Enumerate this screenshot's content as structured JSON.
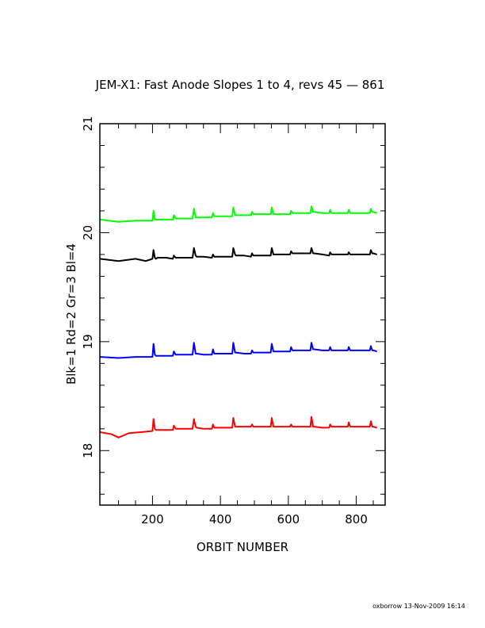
{
  "chart_data": {
    "type": "line",
    "title": "JEM-X1: Fast Anode Slopes 1 to 4, revs 45 — 861",
    "xlabel": "ORBIT NUMBER",
    "ylabel": "Blk=1 Rd=2 Gr=3 Bl=4",
    "xlim": [
      45,
      885
    ],
    "ylim": [
      17.5,
      21
    ],
    "x_ticks": [
      200,
      400,
      600,
      800
    ],
    "x_tick_labels": [
      "200",
      "400",
      "600",
      "800"
    ],
    "y_ticks": [
      18,
      19,
      20,
      21
    ],
    "y_tick_labels": [
      "18",
      "19",
      "20",
      "21"
    ],
    "grid": false,
    "footer": "oxborrow 13-Nov-2009 16:14",
    "series": [
      {
        "color": "#000000",
        "x": [
          45,
          100,
          150,
          180,
          200,
          203,
          207,
          210,
          215,
          240,
          260,
          263,
          268,
          290,
          318,
          322,
          327,
          330,
          350,
          375,
          378,
          382,
          385,
          410,
          435,
          438,
          443,
          446,
          470,
          490,
          493,
          497,
          500,
          525,
          548,
          551,
          556,
          560,
          580,
          605,
          608,
          612,
          615,
          640,
          665,
          668,
          673,
          676,
          700,
          720,
          723,
          727,
          730,
          755,
          775,
          778,
          782,
          785,
          810,
          840,
          843,
          847,
          850,
          861
        ],
        "y": [
          19.76,
          19.74,
          19.76,
          19.74,
          19.76,
          19.84,
          19.77,
          19.76,
          19.77,
          19.77,
          19.76,
          19.79,
          19.77,
          19.77,
          19.77,
          19.86,
          19.79,
          19.78,
          19.78,
          19.77,
          19.8,
          19.78,
          19.78,
          19.78,
          19.78,
          19.86,
          19.8,
          19.79,
          19.79,
          19.78,
          19.81,
          19.79,
          19.79,
          19.79,
          19.79,
          19.86,
          19.8,
          19.8,
          19.8,
          19.8,
          19.83,
          19.81,
          19.81,
          19.81,
          19.81,
          19.86,
          19.81,
          19.81,
          19.8,
          19.79,
          19.82,
          19.8,
          19.8,
          19.8,
          19.8,
          19.82,
          19.8,
          19.8,
          19.8,
          19.8,
          19.84,
          19.81,
          19.81,
          19.8
        ]
      },
      {
        "color": "#ff0000",
        "x": [
          45,
          80,
          100,
          130,
          170,
          200,
          203,
          207,
          210,
          240,
          260,
          263,
          268,
          290,
          318,
          322,
          327,
          330,
          350,
          375,
          378,
          382,
          385,
          410,
          435,
          438,
          443,
          446,
          470,
          490,
          493,
          497,
          500,
          525,
          548,
          551,
          556,
          560,
          580,
          605,
          608,
          612,
          615,
          640,
          665,
          668,
          673,
          676,
          700,
          720,
          723,
          727,
          730,
          755,
          775,
          778,
          782,
          785,
          810,
          840,
          843,
          847,
          850,
          861
        ],
        "y": [
          18.17,
          18.15,
          18.12,
          18.16,
          18.17,
          18.18,
          18.29,
          18.2,
          18.19,
          18.19,
          18.19,
          18.23,
          18.2,
          18.2,
          18.2,
          18.29,
          18.22,
          18.21,
          18.2,
          18.2,
          18.24,
          18.21,
          18.21,
          18.21,
          18.21,
          18.3,
          18.22,
          18.22,
          18.22,
          18.22,
          18.24,
          18.22,
          18.22,
          18.22,
          18.22,
          18.3,
          18.22,
          18.22,
          18.22,
          18.22,
          18.24,
          18.22,
          18.22,
          18.22,
          18.22,
          18.31,
          18.22,
          18.22,
          18.21,
          18.21,
          18.24,
          18.22,
          18.22,
          18.22,
          18.22,
          18.26,
          18.22,
          18.22,
          18.22,
          18.22,
          18.27,
          18.22,
          18.22,
          18.21
        ]
      },
      {
        "color": "#00ff00",
        "x": [
          45,
          100,
          150,
          180,
          200,
          203,
          207,
          210,
          240,
          260,
          263,
          268,
          290,
          318,
          322,
          327,
          330,
          350,
          375,
          378,
          382,
          385,
          410,
          435,
          438,
          443,
          446,
          470,
          490,
          493,
          497,
          500,
          525,
          548,
          551,
          556,
          560,
          580,
          605,
          608,
          612,
          615,
          640,
          665,
          668,
          673,
          676,
          700,
          720,
          723,
          727,
          730,
          755,
          775,
          778,
          782,
          785,
          810,
          840,
          843,
          847,
          850,
          861
        ],
        "y": [
          20.12,
          20.1,
          20.11,
          20.11,
          20.11,
          20.2,
          20.12,
          20.12,
          20.12,
          20.12,
          20.16,
          20.13,
          20.13,
          20.13,
          20.22,
          20.14,
          20.14,
          20.14,
          20.14,
          20.18,
          20.15,
          20.15,
          20.15,
          20.15,
          20.23,
          20.16,
          20.16,
          20.16,
          20.16,
          20.19,
          20.17,
          20.17,
          20.17,
          20.17,
          20.23,
          20.17,
          20.17,
          20.17,
          20.17,
          20.2,
          20.18,
          20.18,
          20.18,
          20.18,
          20.24,
          20.19,
          20.19,
          20.18,
          20.18,
          20.21,
          20.18,
          20.18,
          20.18,
          20.18,
          20.21,
          20.18,
          20.18,
          20.18,
          20.18,
          20.22,
          20.19,
          20.19,
          20.18
        ]
      },
      {
        "color": "#0000ff",
        "x": [
          45,
          100,
          150,
          180,
          200,
          203,
          207,
          210,
          240,
          260,
          263,
          268,
          290,
          318,
          322,
          327,
          330,
          350,
          375,
          378,
          382,
          385,
          410,
          435,
          438,
          443,
          446,
          470,
          490,
          493,
          497,
          500,
          525,
          548,
          551,
          556,
          560,
          580,
          605,
          608,
          612,
          615,
          640,
          665,
          668,
          673,
          676,
          700,
          720,
          723,
          727,
          730,
          755,
          775,
          778,
          782,
          785,
          810,
          840,
          843,
          847,
          850,
          861
        ],
        "y": [
          18.86,
          18.85,
          18.86,
          18.86,
          18.86,
          18.98,
          18.88,
          18.87,
          18.87,
          18.87,
          18.91,
          18.88,
          18.88,
          18.88,
          18.99,
          18.89,
          18.89,
          18.88,
          18.88,
          18.93,
          18.89,
          18.89,
          18.89,
          18.89,
          18.99,
          18.9,
          18.9,
          18.89,
          18.89,
          18.92,
          18.9,
          18.9,
          18.9,
          18.9,
          18.98,
          18.91,
          18.91,
          18.91,
          18.91,
          18.95,
          18.92,
          18.92,
          18.92,
          18.92,
          18.99,
          18.93,
          18.93,
          18.92,
          18.92,
          18.95,
          18.92,
          18.92,
          18.92,
          18.92,
          18.95,
          18.92,
          18.92,
          18.92,
          18.92,
          18.96,
          18.92,
          18.92,
          18.91
        ]
      }
    ]
  }
}
